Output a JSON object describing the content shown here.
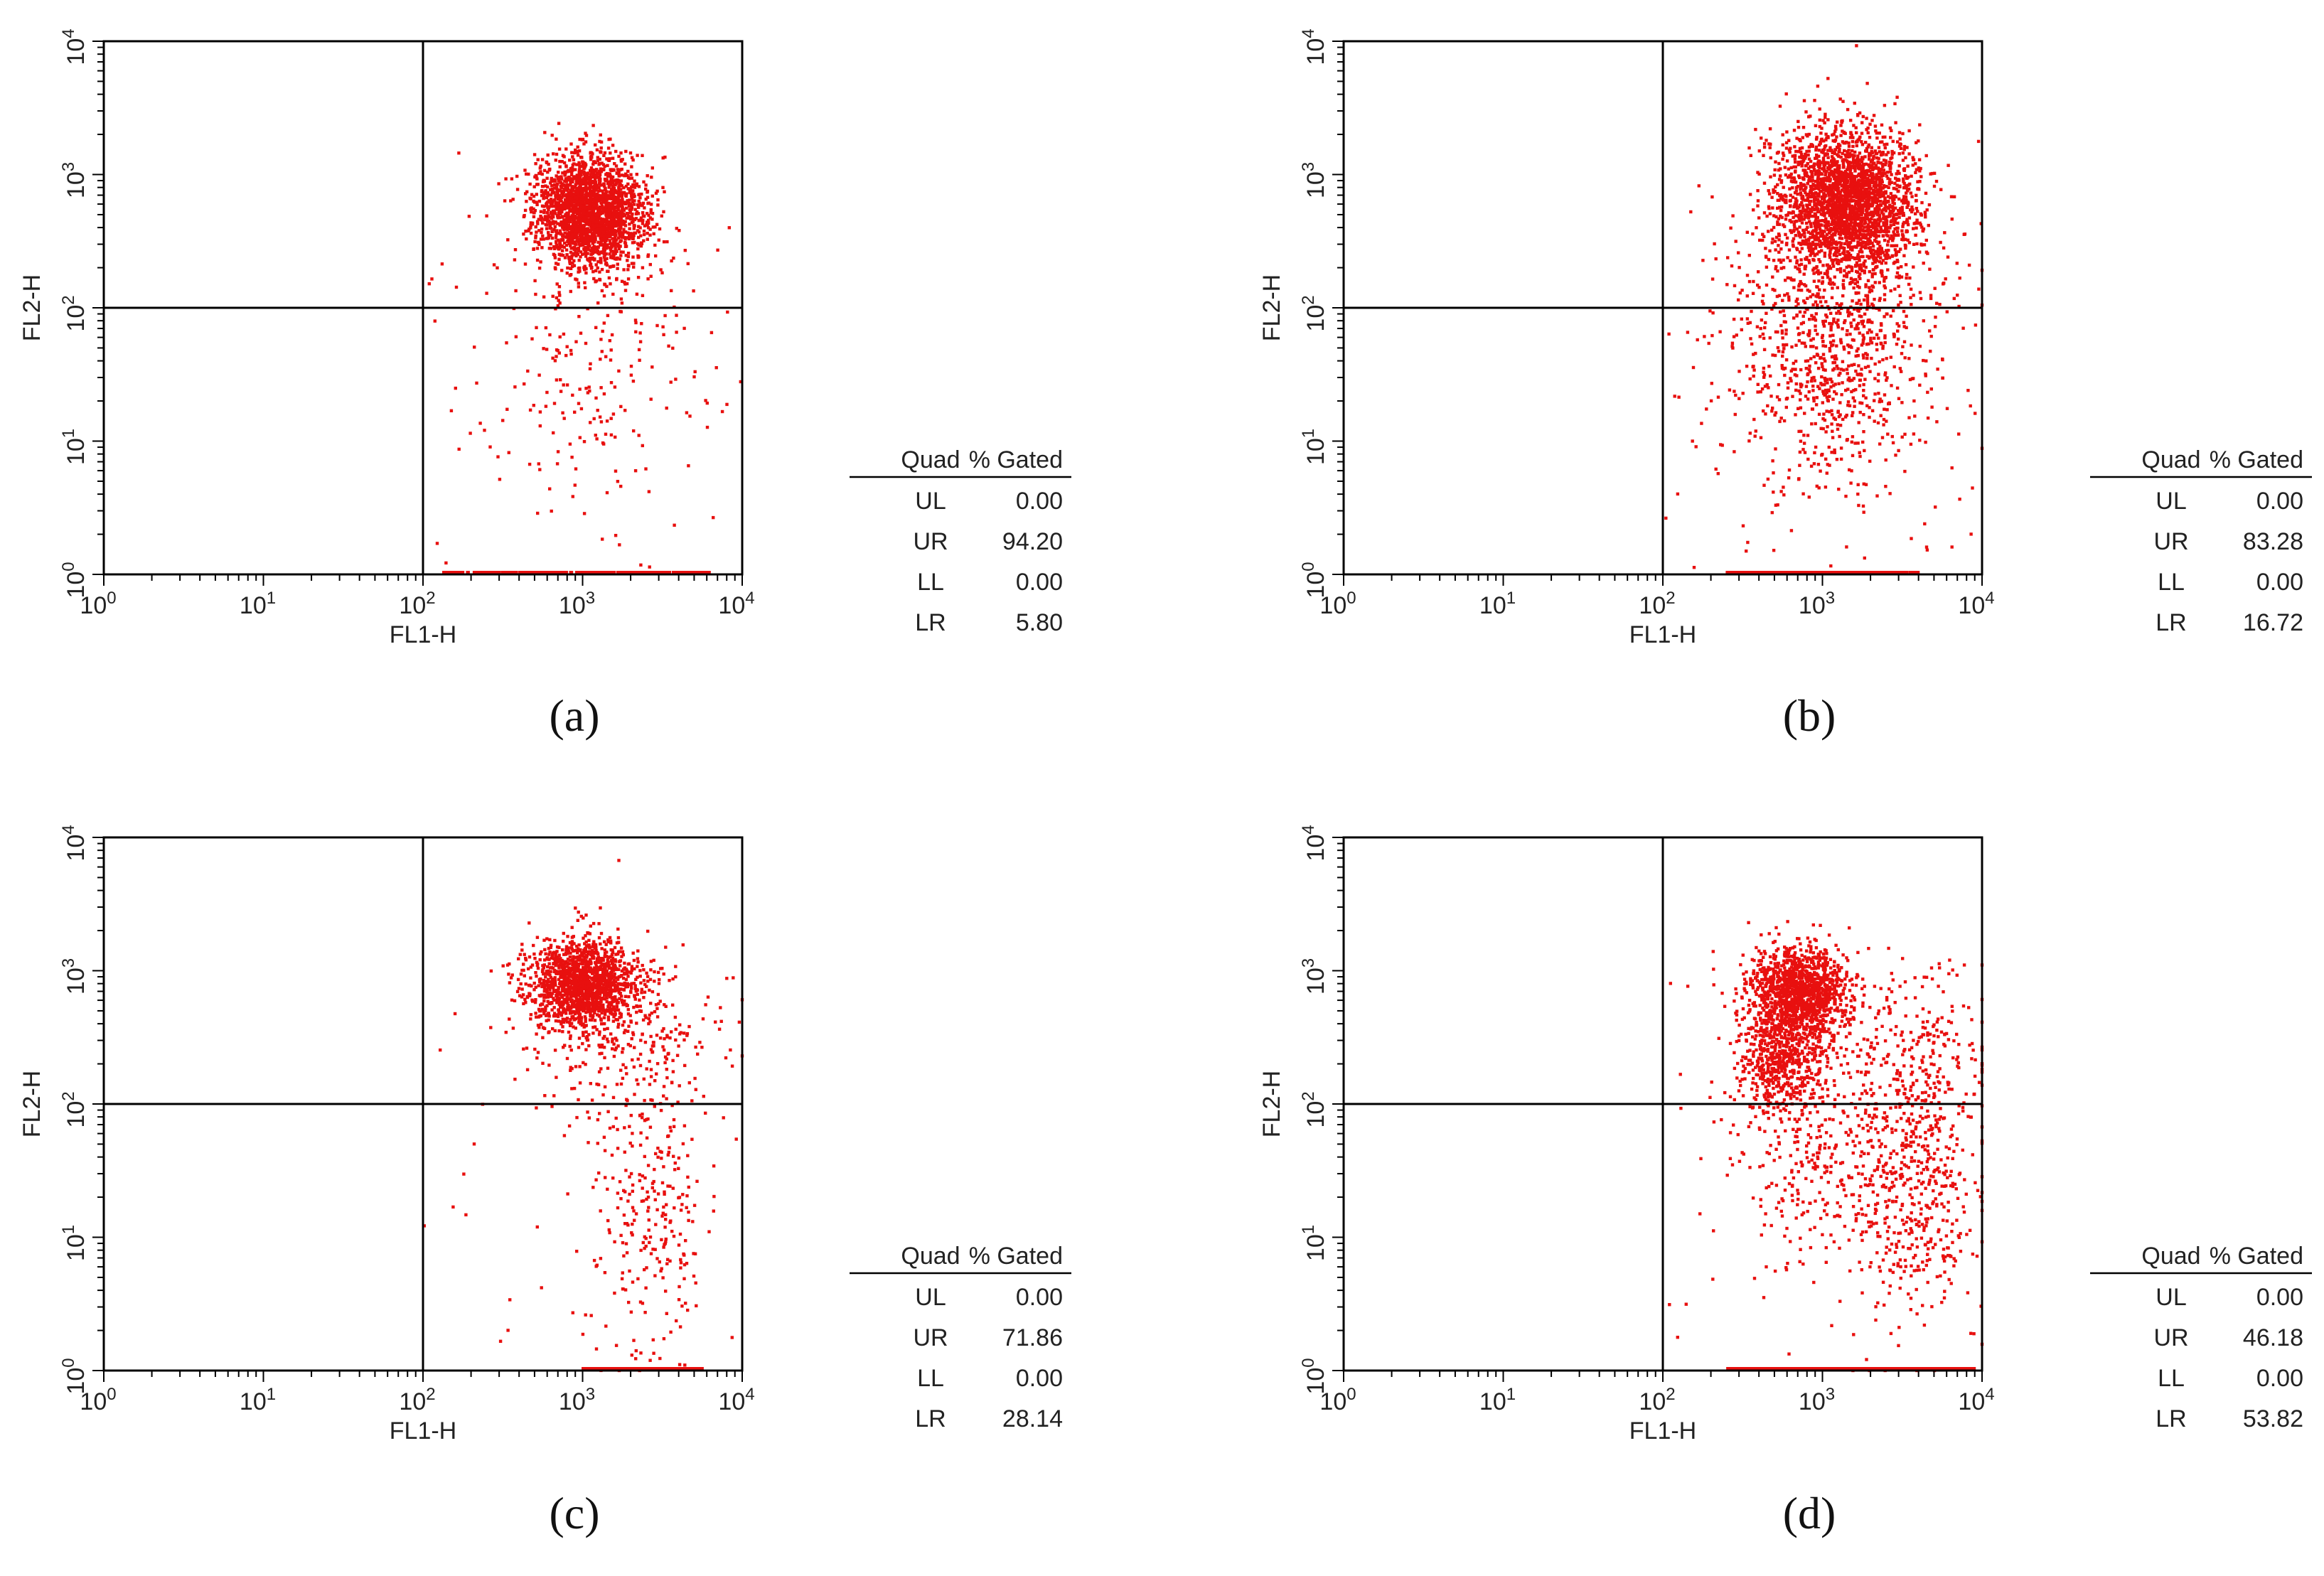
{
  "figure": {
    "colors": {
      "dots": "#e8100f",
      "axes": "#000000",
      "text": "#222222"
    }
  },
  "chart_data": [
    {
      "type": "scatter",
      "label": "(a)",
      "label_letter": "a",
      "xlabel": "FL1-H",
      "ylabel": "FL2-H",
      "scale": "log10",
      "xlim": [
        1,
        10000
      ],
      "ylim": [
        1,
        10000
      ],
      "tick_labels": [
        "10",
        "10",
        "10",
        "10",
        "10"
      ],
      "tick_exponents": [
        "0",
        "1",
        "2",
        "3",
        "4"
      ],
      "quadrant_gate": {
        "x": 100,
        "y": 100
      },
      "stats_header": [
        "Quad",
        "% Gated"
      ],
      "stats": [
        {
          "quad": "UL",
          "value": "0.00"
        },
        {
          "quad": "UR",
          "value": "94.20"
        },
        {
          "quad": "LL",
          "value": "0.00"
        },
        {
          "quad": "LR",
          "value": "5.80"
        }
      ],
      "population": {
        "clusters": [
          {
            "cx": 3.05,
            "cy": 2.72,
            "sx": 0.18,
            "sy": 0.22,
            "n": 2300,
            "rho": 0.35,
            "rot": 0.35
          },
          {
            "cx": 3.0,
            "cy": 1.6,
            "sx": 0.35,
            "sy": 0.55,
            "n": 200
          }
        ],
        "axis_band": {
          "x0": 2.1,
          "x1": 3.8,
          "n": 280
        },
        "scatter_extra": 40
      }
    },
    {
      "type": "scatter",
      "label": "(b)",
      "label_letter": "b",
      "xlabel": "FL1-H",
      "ylabel": "FL2-H",
      "scale": "log10",
      "xlim": [
        1,
        10000
      ],
      "ylim": [
        1,
        10000
      ],
      "tick_labels": [
        "10",
        "10",
        "10",
        "10",
        "10"
      ],
      "tick_exponents": [
        "0",
        "1",
        "2",
        "3",
        "4"
      ],
      "quadrant_gate": {
        "x": 100,
        "y": 100
      },
      "stats_header": [
        "Quad",
        "% Gated"
      ],
      "stats": [
        {
          "quad": "UL",
          "value": "0.00"
        },
        {
          "quad": "UR",
          "value": "83.28"
        },
        {
          "quad": "LL",
          "value": "0.00"
        },
        {
          "quad": "LR",
          "value": "16.72"
        }
      ],
      "population": {
        "clusters": [
          {
            "cx": 3.15,
            "cy": 2.8,
            "sx": 0.22,
            "sy": 0.28,
            "n": 2600,
            "rot": 0.3
          },
          {
            "cx": 3.05,
            "cy": 1.7,
            "sx": 0.3,
            "sy": 0.5,
            "n": 900
          }
        ],
        "axis_band": {
          "x0": 2.4,
          "x1": 3.6,
          "n": 420
        },
        "scatter_extra": 120
      }
    },
    {
      "type": "scatter",
      "label": "(c)",
      "label_letter": "c",
      "xlabel": "FL1-H",
      "ylabel": "FL2-H",
      "scale": "log10",
      "xlim": [
        1,
        10000
      ],
      "ylim": [
        1,
        10000
      ],
      "tick_labels": [
        "10",
        "10",
        "10",
        "10",
        "10"
      ],
      "tick_exponents": [
        "0",
        "1",
        "2",
        "3",
        "4"
      ],
      "quadrant_gate": {
        "x": 100,
        "y": 100
      },
      "stats_header": [
        "Quad",
        "% Gated"
      ],
      "stats": [
        {
          "quad": "UL",
          "value": "0.00"
        },
        {
          "quad": "UR",
          "value": "71.86"
        },
        {
          "quad": "LL",
          "value": "0.00"
        },
        {
          "quad": "LR",
          "value": "28.14"
        }
      ],
      "population": {
        "clusters": [
          {
            "cx": 3.0,
            "cy": 2.9,
            "sx": 0.17,
            "sy": 0.17,
            "n": 1500
          },
          {
            "cx": 3.3,
            "cy": 2.5,
            "sx": 0.3,
            "sy": 0.3,
            "n": 260
          },
          {
            "cx": 3.4,
            "cy": 1.2,
            "sx": 0.18,
            "sy": 0.55,
            "n": 260
          }
        ],
        "axis_band": {
          "x0": 3.0,
          "x1": 3.75,
          "n": 380
        },
        "scatter_extra": 50
      }
    },
    {
      "type": "scatter",
      "label": "(d)",
      "label_letter": "d",
      "xlabel": "FL1-H",
      "ylabel": "FL2-H",
      "scale": "log10",
      "xlim": [
        1,
        10000
      ],
      "ylim": [
        1,
        10000
      ],
      "tick_labels": [
        "10",
        "10",
        "10",
        "10",
        "10"
      ],
      "tick_exponents": [
        "0",
        "1",
        "2",
        "3",
        "4"
      ],
      "quadrant_gate": {
        "x": 100,
        "y": 100
      },
      "stats_header": [
        "Quad",
        "% Gated"
      ],
      "stats": [
        {
          "quad": "UL",
          "value": "0.00"
        },
        {
          "quad": "UR",
          "value": "46.18"
        },
        {
          "quad": "LL",
          "value": "0.00"
        },
        {
          "quad": "LR",
          "value": "53.82"
        }
      ],
      "population": {
        "clusters": [
          {
            "cx": 2.85,
            "cy": 2.85,
            "sx": 0.15,
            "sy": 0.17,
            "n": 1300
          },
          {
            "cx": 2.75,
            "cy": 2.35,
            "sx": 0.14,
            "sy": 0.18,
            "n": 600
          },
          {
            "cx": 2.9,
            "cy": 1.6,
            "sx": 0.22,
            "sy": 0.4,
            "n": 260
          },
          {
            "cx": 3.55,
            "cy": 1.5,
            "sx": 0.2,
            "sy": 0.55,
            "n": 600
          },
          {
            "cx": 3.6,
            "cy": 2.5,
            "sx": 0.3,
            "sy": 0.35,
            "n": 150
          }
        ],
        "axis_band": {
          "x0": 2.4,
          "x1": 3.95,
          "n": 440
        },
        "scatter_extra": 60
      }
    }
  ]
}
